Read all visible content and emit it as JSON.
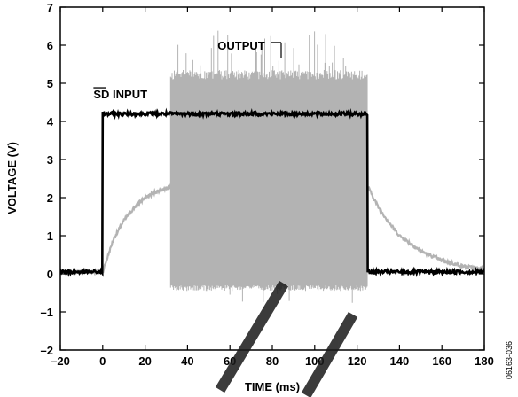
{
  "chart_data": {
    "type": "line",
    "title": "",
    "xlabel": "TIME (ms)",
    "ylabel": "VOLTAGE (V)",
    "xlim": [
      -20,
      180
    ],
    "ylim": [
      -2,
      7
    ],
    "xticks": [
      -20,
      0,
      20,
      40,
      60,
      80,
      100,
      120,
      140,
      160,
      180
    ],
    "yticks": [
      -2,
      -1,
      0,
      1,
      2,
      3,
      4,
      5,
      6,
      7
    ],
    "xtick_labels": [
      "–20",
      "0",
      "20",
      "40",
      "60",
      "80",
      "100",
      "120",
      "140",
      "160",
      "180"
    ],
    "ytick_labels": [
      "–2",
      "–1",
      "0",
      "1",
      "2",
      "3",
      "4",
      "5",
      "6",
      "7"
    ],
    "grid": false,
    "legend": "none",
    "series": [
      {
        "name": "SD INPUT",
        "color": "#000000",
        "x": [
          -20,
          0,
          0,
          125,
          125,
          180
        ],
        "y": [
          0.05,
          0.05,
          4.2,
          4.2,
          0.05,
          0.05
        ]
      },
      {
        "name": "OUTPUT",
        "color": "#b3b3b3",
        "envelope": {
          "x": [
            -20,
            0,
            5,
            10,
            15,
            20,
            25,
            30,
            32,
            32,
            125,
            125,
            130,
            135,
            140,
            150,
            160,
            170,
            180
          ],
          "y_center": [
            0.05,
            0.05,
            0.9,
            1.4,
            1.75,
            2.0,
            2.15,
            2.25,
            2.3,
            2.3,
            2.3,
            2.3,
            1.75,
            1.35,
            1.0,
            0.6,
            0.35,
            0.2,
            0.12
          ]
        },
        "switching_region": {
          "x_start": 32,
          "x_end": 125,
          "y_min": -0.3,
          "y_max": 5.1,
          "spike_max": 6.4,
          "spike_min": -0.9
        }
      }
    ],
    "annotations": [
      {
        "text": "OUTPUT",
        "x": 80,
        "y": 5.7
      },
      {
        "text": "SD INPUT",
        "x": 10,
        "y": 4.65
      }
    ],
    "figure_id": "06163-036"
  }
}
